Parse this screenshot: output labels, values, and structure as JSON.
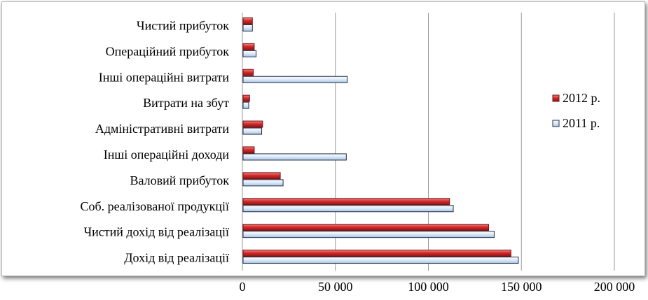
{
  "chart_data": {
    "type": "bar",
    "orientation": "horizontal",
    "categories": [
      "Дохід від реалізації",
      "Чистий дохід від реалізації",
      "Соб. реалізованої продукції",
      "Валовий прибуток",
      "Інші операційні доходи",
      "Адміністративні витрати",
      "Витрати на збут",
      "Інші операційні витрати",
      "Операційний прибуток",
      "Чистий прибуток"
    ],
    "series": [
      {
        "name": "2012 р.",
        "color": "#d42a2a",
        "values": [
          144000,
          132000,
          111000,
          20000,
          6000,
          10500,
          3500,
          5500,
          6000,
          5000
        ]
      },
      {
        "name": "2011 р.",
        "color": "#c7dcf2",
        "values": [
          148000,
          135000,
          113000,
          21500,
          55500,
          10000,
          3000,
          56000,
          7000,
          5000
        ]
      }
    ],
    "xlim": [
      0,
      200000
    ],
    "x_ticks": [
      "0",
      "50 000",
      "100 000",
      "150 000",
      "200 000"
    ],
    "x_tick_values": [
      0,
      50000,
      100000,
      150000,
      200000
    ],
    "grid": "vertical",
    "legend_position": "right"
  }
}
